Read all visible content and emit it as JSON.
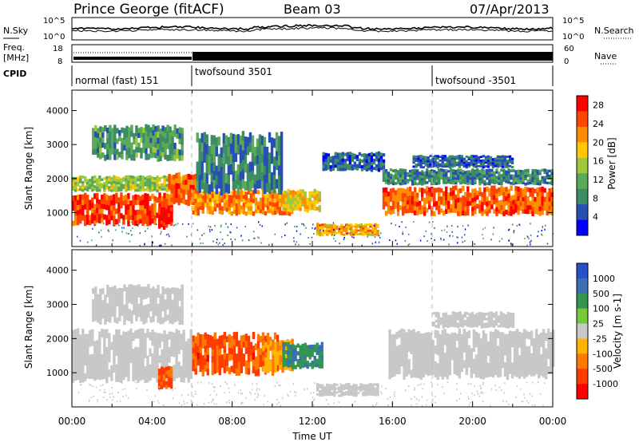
{
  "header": {
    "station": "Prince George (fitACF)",
    "beam": "Beam 03",
    "date": "07/Apr/2013"
  },
  "noise_panel": {
    "left_label": "N.Sky",
    "right_label": "N.Search",
    "left_ticks": [
      "10^5",
      "10^0"
    ],
    "right_ticks": [
      "10^5",
      "10^0"
    ]
  },
  "freq_panel": {
    "left_label_1": "Freq.",
    "left_label_2": "[MHz]",
    "right_label": "Nave",
    "left_ticks": [
      "18",
      "8"
    ],
    "right_ticks": [
      "60",
      "0"
    ],
    "cpid_label": "CPID",
    "cpid_segments": [
      {
        "label": "normal (fast) 151",
        "start_hour": 0
      },
      {
        "label": "twofsound 3501",
        "start_hour": 6
      },
      {
        "label": "twofsound -3501",
        "start_hour": 18
      }
    ]
  },
  "x_axis": {
    "label": "Time UT",
    "ticks": [
      "00:00",
      "04:00",
      "08:00",
      "12:00",
      "16:00",
      "20:00",
      "00:00"
    ]
  },
  "chart_data": [
    {
      "type": "heatmap",
      "panel": "power",
      "xlabel": "Time UT",
      "ylabel": "Slant Range [km]",
      "xlim": [
        0,
        24
      ],
      "ylim": [
        0,
        4600
      ],
      "yticks": [
        "1000",
        "2000",
        "3000",
        "4000"
      ],
      "colorbar": {
        "label": "Power [dB]",
        "ticks": [
          "4",
          "8",
          "12",
          "16",
          "20",
          "24",
          "28"
        ],
        "range": [
          0,
          30
        ],
        "colors": [
          "#0000ff",
          "#2850b4",
          "#3c8c64",
          "#5aaa5a",
          "#a0c83c",
          "#ffc800",
          "#ff8c00",
          "#ff4600",
          "#ff0000"
        ]
      },
      "regions": [
        {
          "t0": 0.0,
          "t1": 5.0,
          "r0": 600,
          "r1": 1600,
          "value": 26
        },
        {
          "t0": 0.0,
          "t1": 5.5,
          "r0": 1600,
          "r1": 2100,
          "value": 14
        },
        {
          "t0": 1.0,
          "t1": 5.5,
          "r0": 2500,
          "r1": 3600,
          "value": 10
        },
        {
          "t0": 4.3,
          "t1": 5.0,
          "r0": 500,
          "r1": 1200,
          "value": 28
        },
        {
          "t0": 4.8,
          "t1": 6.2,
          "r0": 1200,
          "r1": 2200,
          "value": 24
        },
        {
          "t0": 6.0,
          "t1": 11.0,
          "r0": 900,
          "r1": 1700,
          "value": 22
        },
        {
          "t0": 6.2,
          "t1": 10.5,
          "r0": 1500,
          "r1": 3400,
          "value": 8
        },
        {
          "t0": 10.5,
          "t1": 12.3,
          "r0": 1000,
          "r1": 1700,
          "value": 18
        },
        {
          "t0": 12.2,
          "t1": 15.2,
          "r0": 300,
          "r1": 700,
          "value": 20
        },
        {
          "t0": 12.5,
          "t1": 15.5,
          "r0": 2200,
          "r1": 2800,
          "value": 6
        },
        {
          "t0": 15.5,
          "t1": 24.0,
          "r0": 900,
          "r1": 1800,
          "value": 24
        },
        {
          "t0": 15.5,
          "t1": 24.0,
          "r0": 1800,
          "r1": 2300,
          "value": 8
        },
        {
          "t0": 17.0,
          "t1": 22.0,
          "r0": 2300,
          "r1": 2700,
          "value": 6
        }
      ]
    },
    {
      "type": "heatmap",
      "panel": "velocity",
      "xlabel": "Time UT",
      "ylabel": "Slant Range [km]",
      "xlim": [
        0,
        24
      ],
      "ylim": [
        0,
        4600
      ],
      "yticks": [
        "1000",
        "2000",
        "3000",
        "4000"
      ],
      "colorbar": {
        "label": "Velocity [m s-1]",
        "ticks": [
          "1000",
          "500",
          "100",
          "25",
          "-25",
          "-100",
          "-500",
          "-1000"
        ],
        "range": [
          -1000,
          1000
        ],
        "colors": [
          "#2850c8",
          "#3c6eb4",
          "#329650",
          "#78c83c",
          "#c8c8c8",
          "#ffb400",
          "#ff7800",
          "#ff3c00",
          "#ff0000"
        ]
      },
      "regions": [
        {
          "t0": 0.0,
          "t1": 6.0,
          "r0": 700,
          "r1": 2300,
          "value": 0
        },
        {
          "t0": 1.0,
          "t1": 5.5,
          "r0": 2400,
          "r1": 3600,
          "value": 0
        },
        {
          "t0": 4.3,
          "t1": 5.0,
          "r0": 500,
          "r1": 1200,
          "value": -600
        },
        {
          "t0": 6.0,
          "t1": 10.2,
          "r0": 900,
          "r1": 2200,
          "value": -600
        },
        {
          "t0": 9.5,
          "t1": 11.0,
          "r0": 1000,
          "r1": 2000,
          "value": -300
        },
        {
          "t0": 10.5,
          "t1": 12.5,
          "r0": 1100,
          "r1": 1900,
          "value": 500
        },
        {
          "t0": 12.2,
          "t1": 15.2,
          "r0": 300,
          "r1": 700,
          "value": 80
        },
        {
          "t0": 15.8,
          "t1": 24.0,
          "r0": 800,
          "r1": 2300,
          "value": 0
        },
        {
          "t0": 18.0,
          "t1": 22.0,
          "r0": 2300,
          "r1": 2800,
          "value": 0
        }
      ]
    }
  ]
}
